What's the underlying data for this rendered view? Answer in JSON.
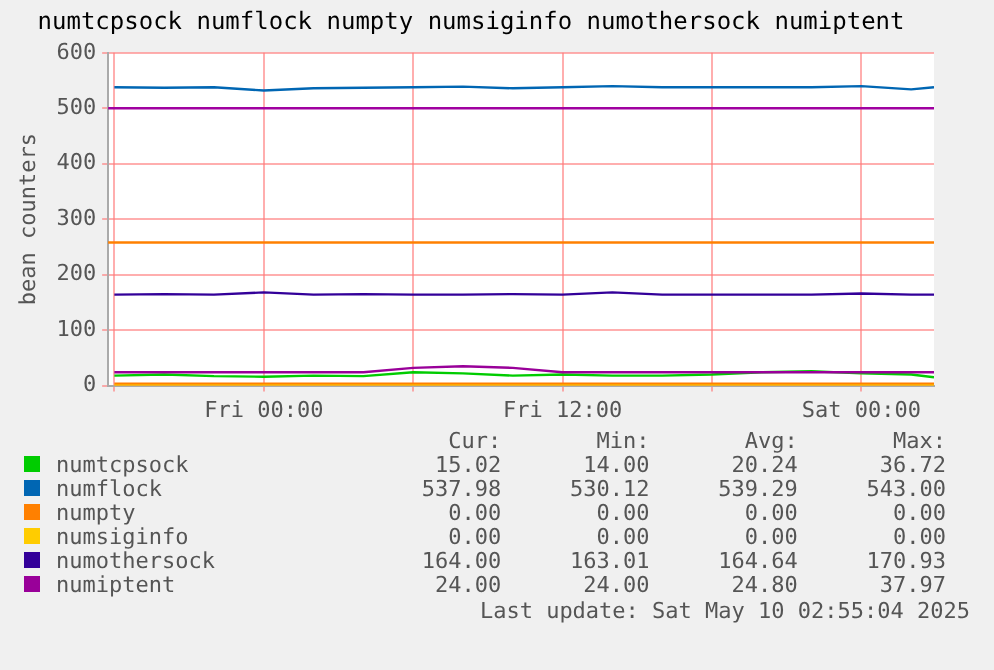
{
  "chart_data": {
    "type": "line",
    "title": "numtcpsock numflock numpty numsiginfo numothersock numiptent",
    "ylabel": "bean counters",
    "x": [
      "2025-05-08T18:00",
      "2025-05-08T20:00",
      "2025-05-08T22:00",
      "2025-05-09T00:00",
      "2025-05-09T02:00",
      "2025-05-09T04:00",
      "2025-05-09T06:00",
      "2025-05-09T08:00",
      "2025-05-09T10:00",
      "2025-05-09T12:00",
      "2025-05-09T14:00",
      "2025-05-09T16:00",
      "2025-05-09T18:00",
      "2025-05-09T20:00",
      "2025-05-09T22:00",
      "2025-05-10T00:00",
      "2025-05-10T02:00",
      "2025-05-10T02:55"
    ],
    "xlim": [
      "2025-05-08T17:45",
      "2025-05-10T02:55"
    ],
    "xticks": [
      {
        "value": "2025-05-08T18:00",
        "label": null
      },
      {
        "value": "2025-05-09T00:00",
        "label": "Fri 00:00"
      },
      {
        "value": "2025-05-09T06:00",
        "label": null
      },
      {
        "value": "2025-05-09T12:00",
        "label": "Fri 12:00"
      },
      {
        "value": "2025-05-09T18:00",
        "label": null
      },
      {
        "value": "2025-05-10T00:00",
        "label": "Sat 00:00"
      }
    ],
    "ylim": [
      0,
      600
    ],
    "yticks": [
      0,
      100,
      200,
      300,
      400,
      500,
      600
    ],
    "grid": true,
    "legend": "bottom",
    "marker": "none",
    "line_style": "solid",
    "series": [
      {
        "name": "numtcpsock",
        "color": "#00cc00",
        "values": [
          18,
          20,
          17,
          16,
          18,
          17,
          24,
          22,
          18,
          20,
          18,
          18,
          20,
          24,
          26,
          22,
          20,
          15
        ]
      },
      {
        "name": "numflock",
        "color": "#0066b3",
        "values": [
          538,
          537,
          538,
          532,
          536,
          537,
          538,
          539,
          536,
          538,
          540,
          538,
          538,
          538,
          538,
          540,
          534,
          538
        ]
      },
      {
        "name": "numpty",
        "color": "#ff8000",
        "values": [
          0,
          0,
          0,
          0,
          0,
          0,
          0,
          0,
          0,
          0,
          0,
          0,
          0,
          0,
          0,
          0,
          0,
          0
        ]
      },
      {
        "name": "numsiginfo",
        "color": "#ffcc00",
        "values": [
          0,
          0,
          0,
          0,
          0,
          0,
          0,
          0,
          0,
          0,
          0,
          0,
          0,
          0,
          0,
          0,
          0,
          0
        ]
      },
      {
        "name": "numothersock",
        "color": "#330099",
        "values": [
          164,
          165,
          164,
          168,
          164,
          165,
          164,
          164,
          165,
          164,
          168,
          164,
          164,
          164,
          164,
          166,
          164,
          164
        ]
      },
      {
        "name": "numiptent",
        "color": "#990099",
        "values": [
          24,
          24,
          24,
          24,
          24,
          24,
          32,
          35,
          32,
          24,
          24,
          24,
          24,
          24,
          24,
          24,
          24,
          24
        ]
      }
    ],
    "ref_lines": [
      {
        "axis": "y",
        "value": 500,
        "color": "#a000a0"
      },
      {
        "axis": "y",
        "value": 258,
        "color": "#ff8000"
      }
    ],
    "annotations": [
      "Cur:",
      "Min:",
      "Avg:",
      "Max:",
      "15.02",
      "14.00",
      "20.24",
      "36.72",
      "537.98",
      "530.12",
      "539.29",
      "543.00",
      "0.00",
      "0.00",
      "0.00",
      "0.00",
      "0.00",
      "0.00",
      "0.00",
      "0.00",
      "164.00",
      "163.01",
      "164.64",
      "170.93",
      "24.00",
      "24.00",
      "24.80",
      "37.97",
      "Last update: Sat May 10 02:55:04 2025"
    ]
  }
}
